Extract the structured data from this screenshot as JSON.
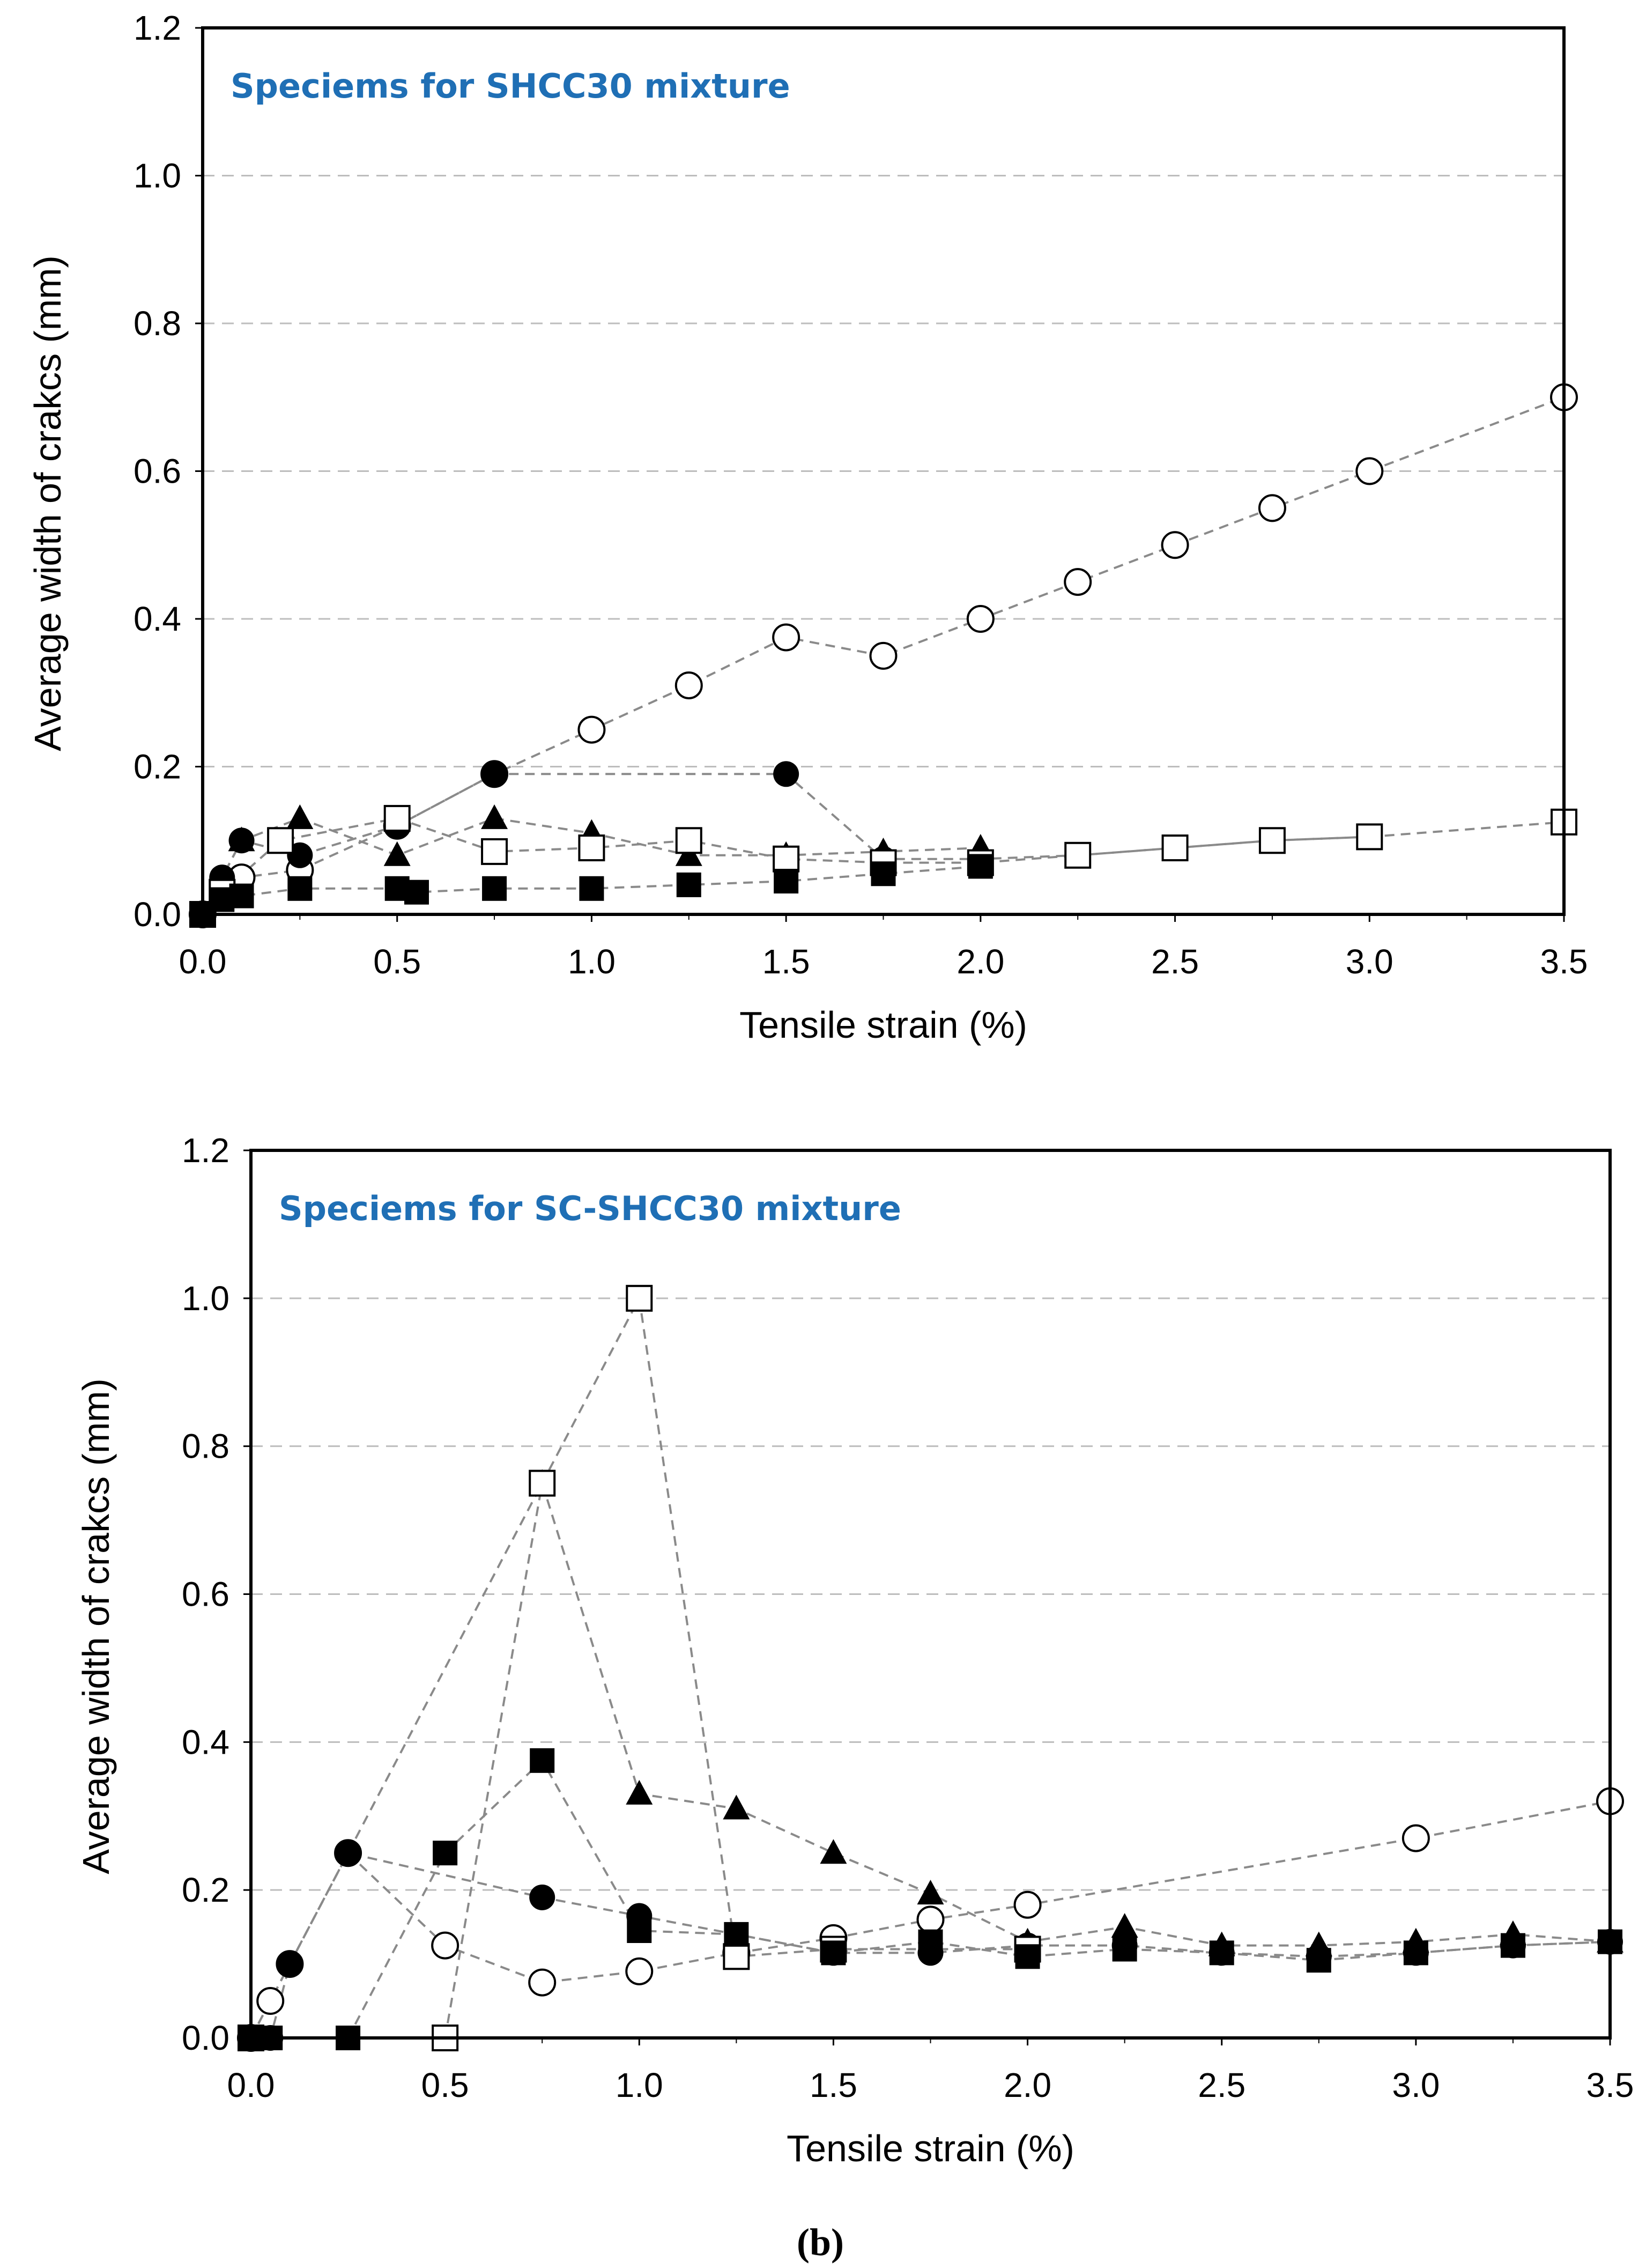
{
  "colors": {
    "title": "#1f6fb5",
    "line": "#8a8a8a",
    "grid": "#bdbdbd",
    "axis": "#000000"
  },
  "figure_label": "(b)",
  "chart_data": [
    {
      "type": "scatter",
      "title": "Speciems for SHCC30 mixture",
      "xlabel": "Tensile strain (%)",
      "ylabel": "Average width of crakcs (mm)",
      "xlim": [
        0,
        3.5
      ],
      "ylim": [
        0,
        1.2
      ],
      "xticks": [
        "0.0",
        "0.5",
        "1.0",
        "1.5",
        "2.0",
        "2.5",
        "3.0",
        "3.5"
      ],
      "yticks": [
        "0.0",
        "0.2",
        "0.4",
        "0.6",
        "0.8",
        "1.0",
        "1.2"
      ],
      "grid": "horizontal dashed",
      "series": [
        {
          "marker": "open-circle",
          "x": [
            0,
            0.1,
            0.25,
            0.5,
            0.75,
            1.0,
            1.25,
            1.5,
            1.75,
            2.0,
            2.25,
            2.5,
            2.75,
            3.0,
            3.5
          ],
          "y": [
            0,
            0.05,
            0.06,
            0.12,
            0.19,
            0.25,
            0.31,
            0.375,
            0.35,
            0.4,
            0.45,
            0.5,
            0.55,
            0.6,
            0.7
          ]
        },
        {
          "marker": "filled-circle",
          "x": [
            0,
            0.05,
            0.1,
            0.25,
            0.5,
            0.75,
            1.5,
            1.75,
            2.0,
            2.25,
            2.5,
            2.75,
            3.0
          ],
          "y": [
            0,
            0.05,
            0.1,
            0.08,
            0.12,
            0.19,
            0.19,
            0.075,
            0.075,
            0.08,
            0.09,
            0.1,
            0.105
          ]
        },
        {
          "marker": "filled-triangle",
          "x": [
            0,
            0.1,
            0.25,
            0.5,
            0.75,
            1.0,
            1.25,
            1.5,
            1.75,
            2.0
          ],
          "y": [
            0,
            0.1,
            0.13,
            0.08,
            0.13,
            0.11,
            0.08,
            0.08,
            0.085,
            0.09
          ]
        },
        {
          "marker": "open-square",
          "x": [
            0,
            0.05,
            0.2,
            0.5,
            0.75,
            1.0,
            1.25,
            1.5,
            1.75,
            2.0,
            2.25,
            2.5,
            2.75,
            3.0,
            3.5
          ],
          "y": [
            0,
            0.03,
            0.1,
            0.13,
            0.085,
            0.09,
            0.1,
            0.075,
            0.07,
            0.07,
            0.08,
            0.09,
            0.1,
            0.105,
            0.125
          ]
        },
        {
          "marker": "filled-square",
          "x": [
            0,
            0.05,
            0.1,
            0.25,
            0.5,
            0.55,
            0.75,
            1.0,
            1.25,
            1.5,
            1.75,
            2.0
          ],
          "y": [
            0,
            0.02,
            0.025,
            0.035,
            0.035,
            0.03,
            0.035,
            0.035,
            0.04,
            0.045,
            0.055,
            0.065
          ]
        }
      ]
    },
    {
      "type": "scatter",
      "title": "Speciems for SC-SHCC30 mixture",
      "xlabel": "Tensile strain (%)",
      "ylabel": "Average width of crakcs (mm)",
      "xlim": [
        0,
        3.5
      ],
      "ylim": [
        0,
        1.2
      ],
      "xticks": [
        "0.0",
        "0.5",
        "1.0",
        "1.5",
        "2.0",
        "2.5",
        "3.0",
        "3.5"
      ],
      "yticks": [
        "0.0",
        "0.2",
        "0.4",
        "0.6",
        "0.8",
        "1.0",
        "1.2"
      ],
      "grid": "horizontal dashed",
      "series": [
        {
          "marker": "open-circle",
          "x": [
            0,
            0.05,
            0.1,
            0.25,
            0.5,
            0.75,
            1.0,
            1.25,
            1.5,
            1.75,
            2.0,
            3.0,
            3.5
          ],
          "y": [
            0,
            0.05,
            0.1,
            0.25,
            0.125,
            0.075,
            0.09,
            0.115,
            0.135,
            0.16,
            0.18,
            0.27,
            0.32
          ]
        },
        {
          "marker": "filled-circle",
          "x": [
            0,
            0.05,
            0.1,
            0.25,
            0.75,
            1.0,
            1.5,
            1.75,
            2.0,
            2.25,
            2.5,
            2.75,
            3.0,
            3.25,
            3.5
          ],
          "y": [
            0,
            0,
            0.1,
            0.25,
            0.19,
            0.165,
            0.115,
            0.115,
            0.125,
            0.125,
            0.115,
            0.11,
            0.115,
            0.125,
            0.13
          ]
        },
        {
          "marker": "filled-triangle",
          "x": [
            0,
            0.75,
            1.0,
            1.25,
            1.5,
            1.75,
            2.0,
            2.25,
            2.5,
            2.75,
            3.0,
            3.25,
            3.5
          ],
          "y": [
            0,
            0.75,
            0.33,
            0.31,
            0.25,
            0.195,
            0.13,
            0.15,
            0.125,
            0.125,
            0.13,
            0.14,
            0.13
          ]
        },
        {
          "marker": "open-square",
          "x": [
            0,
            0.5,
            0.75,
            1.0,
            1.25,
            1.5,
            2.0
          ],
          "y": [
            0,
            0,
            0.75,
            1.0,
            0.11,
            0.12,
            0.12
          ]
        },
        {
          "marker": "filled-square",
          "x": [
            0,
            0.05,
            0.25,
            0.5,
            0.75,
            1.0,
            1.25,
            1.5,
            1.75,
            2.0,
            2.25,
            2.5,
            2.75,
            3.0,
            3.25,
            3.5
          ],
          "y": [
            0,
            0,
            0,
            0.25,
            0.375,
            0.145,
            0.14,
            0.115,
            0.13,
            0.11,
            0.12,
            0.115,
            0.105,
            0.115,
            0.125,
            0.13
          ]
        }
      ]
    }
  ]
}
